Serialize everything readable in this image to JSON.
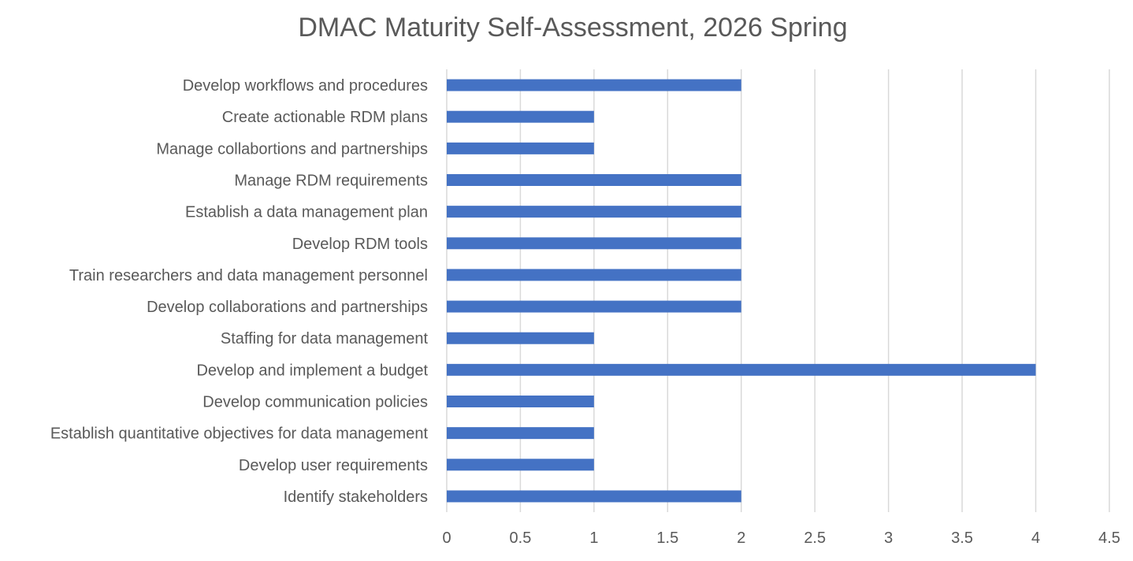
{
  "chart_data": {
    "type": "bar",
    "orientation": "horizontal",
    "title": "DMAC Maturity Self-Assessment, 2026 Spring",
    "xlabel": "",
    "ylabel": "",
    "categories": [
      "Develop workflows and procedures",
      "Create actionable RDM plans",
      "Manage collabortions and partnerships",
      "Manage RDM requirements",
      "Establish a data management plan",
      "Develop RDM tools",
      "Train researchers and data management personnel",
      "Develop collaborations and partnerships",
      "Staffing for data management",
      "Develop and implement a budget",
      "Develop communication policies",
      "Establish quantitative objectives for data management",
      "Develop user requirements",
      "Identify stakeholders"
    ],
    "values": [
      2,
      1,
      1,
      2,
      2,
      2,
      2,
      2,
      1,
      4,
      1,
      1,
      1,
      2
    ],
    "xlim": [
      0,
      4.5
    ],
    "xticks": [
      "0",
      "0.5",
      "1",
      "1.5",
      "2",
      "2.5",
      "3",
      "3.5",
      "4",
      "4.5"
    ],
    "grid": true,
    "legend": "none",
    "bar_color": "#4472c4",
    "grid_color": "#d9d9d9",
    "text_color": "#595959"
  }
}
